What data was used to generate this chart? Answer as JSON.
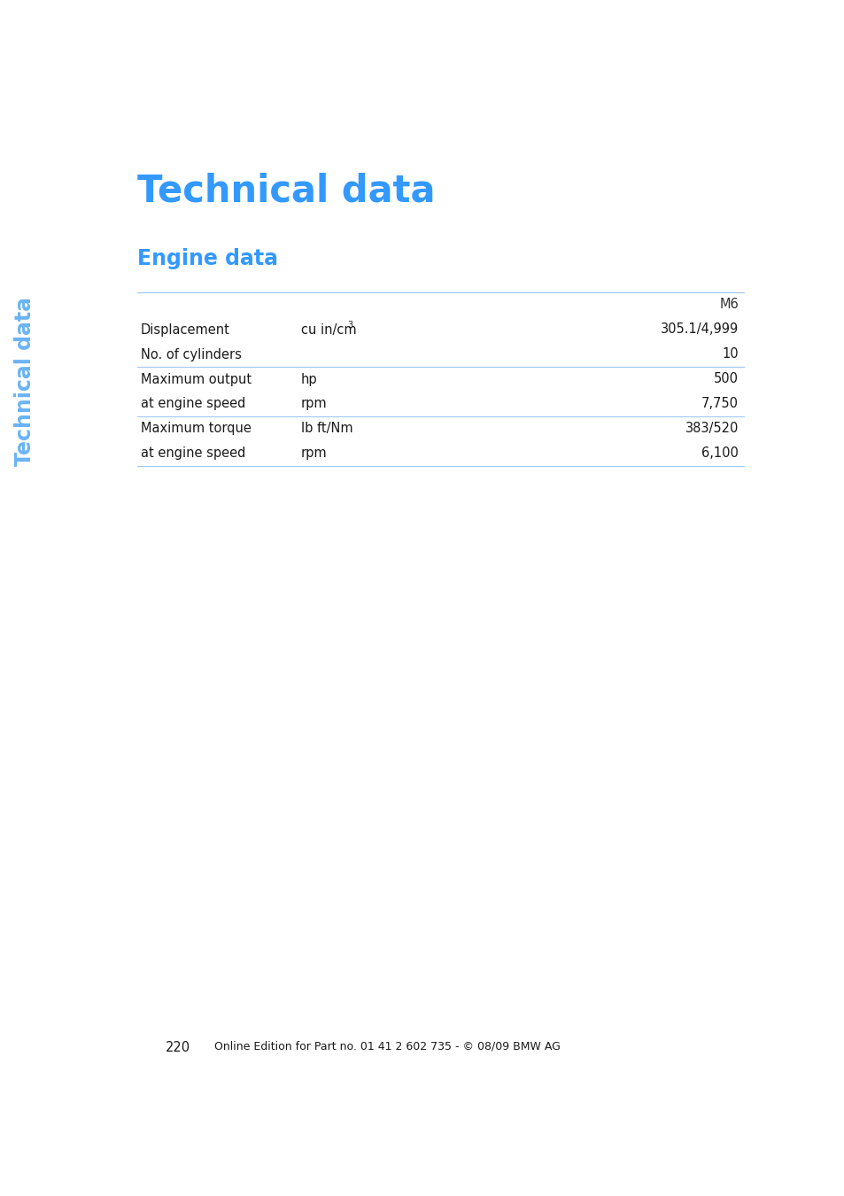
{
  "page_title": "Technical data",
  "section_title": "Engine data",
  "sidebar_text": "Technical data",
  "sidebar_color": "#6ab4f5",
  "title_color": "#3399ff",
  "section_color": "#3399ff",
  "header_bg_color": "#b8d4f5",
  "divider_color": "#a0c8f0",
  "table_header_col": "M6",
  "table_rows": [
    [
      "Displacement",
      "cu in/cm³",
      "305.1/4,999"
    ],
    [
      "No. of cylinders",
      "",
      "10"
    ],
    [
      "Maximum output",
      "hp",
      "500"
    ],
    [
      "at engine speed",
      "rpm",
      "7,750"
    ],
    [
      "Maximum torque",
      "lb ft/Nm",
      "383/520"
    ],
    [
      "at engine speed",
      "rpm",
      "6,100"
    ]
  ],
  "divider_before_rows": [
    2,
    4
  ],
  "page_number": "220",
  "footer_text": "Online Edition for Part no. 01 41 2 602 735 - © 08/09 BMW AG",
  "footer_bar_color": "#b8d4f5",
  "bg_color": "#ffffff",
  "text_color": "#1a1a1a",
  "header_text_color": "#333333"
}
